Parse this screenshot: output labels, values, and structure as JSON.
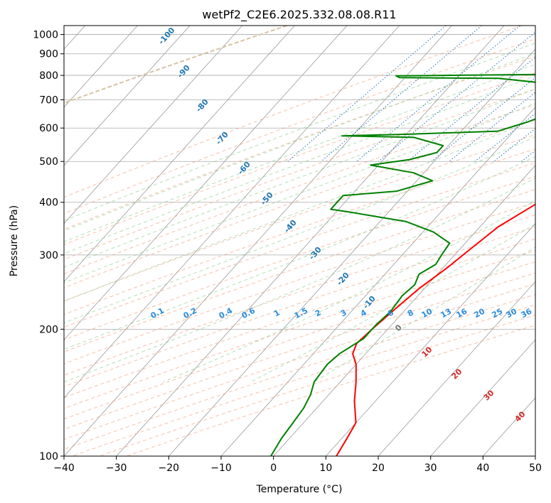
{
  "chart_data": {
    "type": "line",
    "title": "wetPf2_C2E6.2025.332.08.08.R11",
    "xlabel": "Temperature (°C)",
    "ylabel": "Pressure (hPa)",
    "xlim": [
      -40,
      50
    ],
    "ylim": [
      1050,
      100
    ],
    "yscale": "log",
    "grid": true,
    "x_ticks": [
      "−40",
      "−30",
      "−20",
      "−10",
      "0",
      "10",
      "20",
      "30",
      "40",
      "50"
    ],
    "y_ticks": [
      "100",
      "200",
      "300",
      "400",
      "500",
      "600",
      "700",
      "800",
      "900",
      "1000"
    ],
    "series": [
      {
        "color": "#ff0000",
        "points": [
          [
            21.0,
            1000
          ],
          [
            18.5,
            970
          ],
          [
            16.0,
            940
          ],
          [
            14.8,
            915
          ],
          [
            14.5,
            890
          ],
          [
            15.0,
            865
          ],
          [
            15.5,
            840
          ],
          [
            15.3,
            820
          ],
          [
            17.0,
            800
          ],
          [
            19.5,
            790
          ],
          [
            22.0,
            770
          ],
          [
            22.0,
            730
          ],
          [
            21.5,
            680
          ],
          [
            21.0,
            650
          ],
          [
            20.8,
            620
          ],
          [
            20.0,
            595
          ],
          [
            19.0,
            570
          ],
          [
            18.0,
            540
          ],
          [
            15.0,
            500
          ],
          [
            11.0,
            450
          ],
          [
            7.0,
            400
          ],
          [
            3.5,
            350
          ],
          [
            2.0,
            310
          ],
          [
            0.8,
            280
          ],
          [
            -1.0,
            250
          ],
          [
            -2.0,
            225
          ],
          [
            -3.0,
            200
          ],
          [
            -3.5,
            185
          ],
          [
            -2.5,
            175
          ],
          [
            0.0,
            165
          ],
          [
            3.0,
            150
          ],
          [
            6.0,
            135
          ],
          [
            10.0,
            120
          ],
          [
            11.0,
            110
          ],
          [
            12.0,
            100
          ]
        ]
      },
      {
        "color": "#008000",
        "points": [
          [
            11.0,
            1000
          ],
          [
            11.5,
            985
          ],
          [
            10.5,
            965
          ],
          [
            10.2,
            940
          ],
          [
            9.0,
            925
          ],
          [
            7.0,
            905
          ],
          [
            5.5,
            880
          ],
          [
            3.0,
            855
          ],
          [
            2.0,
            830
          ],
          [
            -10.0,
            805
          ],
          [
            -42.0,
            798
          ],
          [
            -41.0,
            790
          ],
          [
            -22.0,
            787
          ],
          [
            -14.0,
            770
          ],
          [
            -9.0,
            740
          ],
          [
            -4.5,
            710
          ],
          [
            -3.5,
            690
          ],
          [
            -3.5,
            680
          ],
          [
            -5.0,
            660
          ],
          [
            -7.0,
            640
          ],
          [
            -9.0,
            620
          ],
          [
            -11.0,
            605
          ],
          [
            -13.0,
            590
          ],
          [
            -30.0,
            580
          ],
          [
            -42.0,
            575
          ],
          [
            -28.0,
            570
          ],
          [
            -21.0,
            545
          ],
          [
            -21.0,
            525
          ],
          [
            -25.0,
            505
          ],
          [
            -31.5,
            490
          ],
          [
            -22.0,
            470
          ],
          [
            -17.0,
            450
          ],
          [
            -22.0,
            425
          ],
          [
            -31.5,
            415
          ],
          [
            -31.5,
            385
          ],
          [
            -28.0,
            380
          ],
          [
            -15.0,
            360
          ],
          [
            -8.0,
            340
          ],
          [
            -3.0,
            320
          ],
          [
            -2.5,
            300
          ],
          [
            -2.0,
            285
          ],
          [
            -3.5,
            270
          ],
          [
            -2.5,
            255
          ],
          [
            -3.0,
            240
          ],
          [
            -2.5,
            220
          ],
          [
            -3.0,
            205
          ],
          [
            -3.0,
            190
          ],
          [
            -5.0,
            175
          ],
          [
            -5.5,
            165
          ],
          [
            -5.0,
            150
          ],
          [
            -3.5,
            140
          ],
          [
            -2.5,
            130
          ],
          [
            -2.0,
            120
          ],
          [
            -1.5,
            110
          ],
          [
            -0.5,
            100
          ]
        ]
      }
    ],
    "annotations": {
      "isotherm_labels": [
        "-100",
        "-90",
        "-80",
        "-70",
        "-60",
        "-50",
        "-40",
        "-30",
        "-20",
        "-10"
      ],
      "mixing_ratio_labels": [
        "0.1",
        "0.2",
        "0.4",
        "0.6",
        "1",
        "1.5",
        "2",
        "3",
        "4",
        "6",
        "8",
        "10",
        "13",
        "16",
        "20",
        "25",
        "30",
        "36"
      ],
      "moist_adiabat_labels": [
        "0",
        "10",
        "20",
        "30",
        "40"
      ]
    }
  }
}
